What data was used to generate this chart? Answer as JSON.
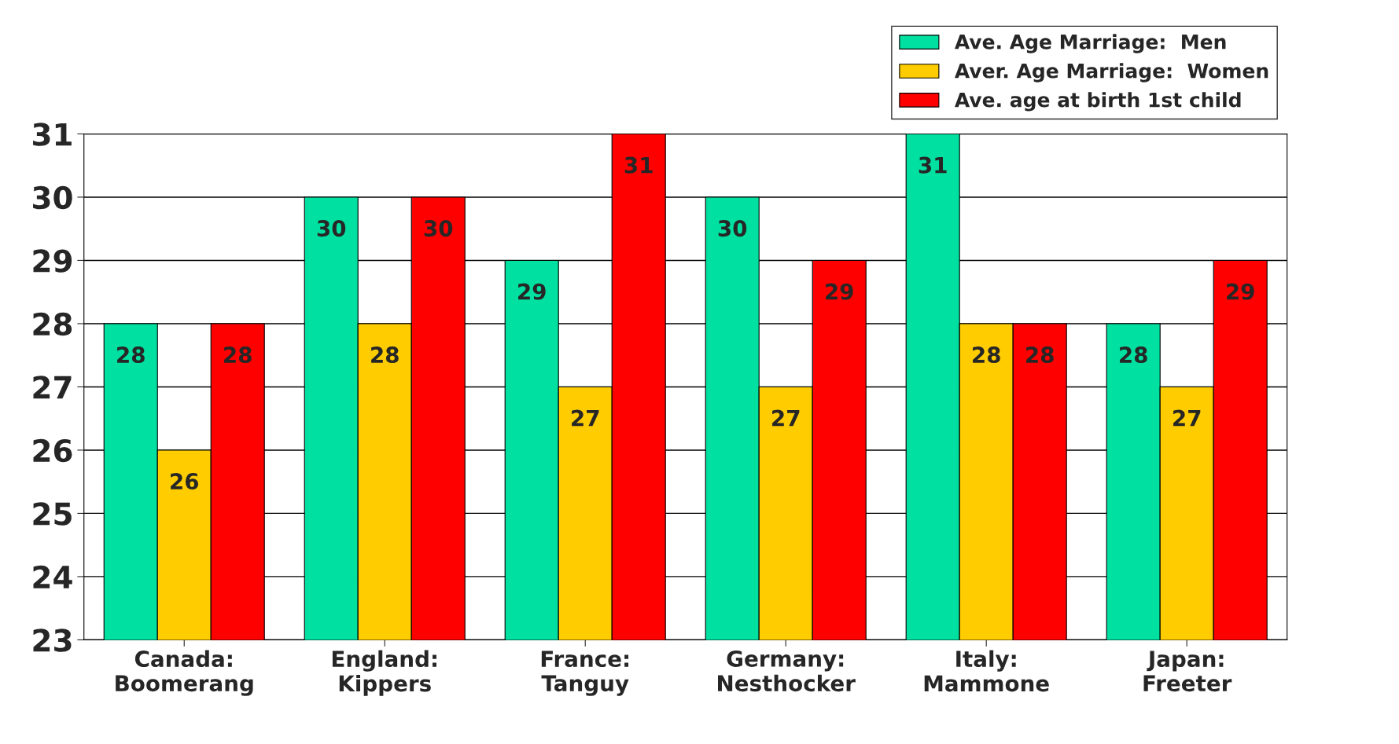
{
  "chart_data": {
    "type": "bar",
    "categories": [
      "Canada:\nBoomerang",
      "England:\nKippers",
      "France:\nTanguy",
      "Germany:\nNesthocker",
      "Italy:\nMammone",
      "Japan:\nFreeter"
    ],
    "series": [
      {
        "name": "Ave. Age Marriage:  Men",
        "color": "#00e0a0",
        "values": [
          28,
          30,
          29,
          30,
          31,
          28
        ]
      },
      {
        "name": "Aver. Age Marriage:  Women",
        "color": "#ffcc00",
        "values": [
          26,
          28,
          27,
          27,
          28,
          27
        ]
      },
      {
        "name": "Ave. age at birth 1st child",
        "color": "#ff0000",
        "values": [
          28,
          30,
          31,
          29,
          28,
          29
        ]
      }
    ],
    "ylim": [
      23,
      31
    ],
    "yticks": [
      23,
      24,
      25,
      26,
      27,
      28,
      29,
      30,
      31
    ],
    "grid": "y",
    "legend": "top right",
    "data_labels": true
  }
}
